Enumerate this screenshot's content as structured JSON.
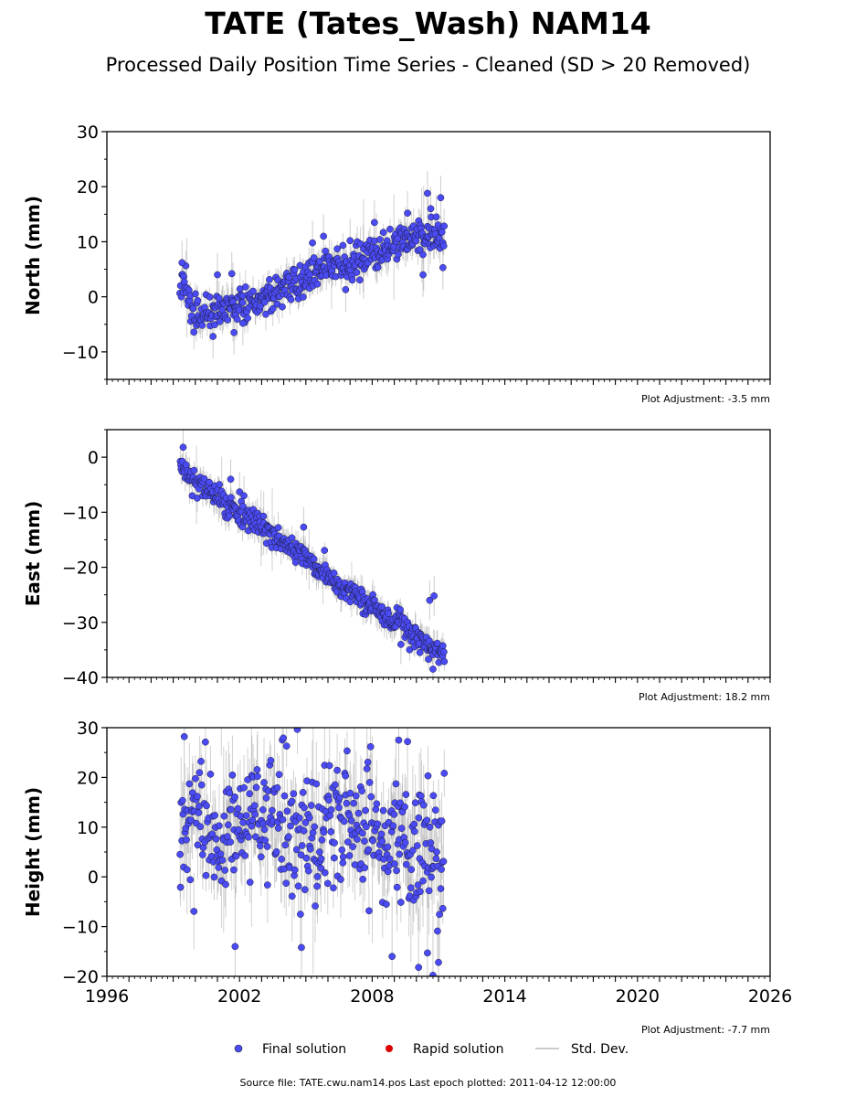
{
  "title": "TATE (Tates_Wash) NAM14",
  "subtitle": "Processed Daily Position Time Series - Cleaned (SD > 20 Removed)",
  "footer": "Source file: TATE.cwu.nam14.pos  Last epoch plotted: 2011-04-12 12:00:00",
  "legend": {
    "placement": "bottom-center",
    "items": [
      {
        "label": "Final solution",
        "color": "#4b4bf5",
        "kind": "marker"
      },
      {
        "label": "Rapid solution",
        "color": "#dd0000",
        "kind": "marker"
      },
      {
        "label": "Std. Dev.",
        "color": "#cccccc",
        "kind": "line"
      }
    ]
  },
  "colors": {
    "final": "#4b4bf5",
    "rapid": "#dd0000",
    "std_dev": "#999999",
    "axis": "#000000"
  },
  "chart_data": [
    {
      "type": "scatter",
      "ylabel": "North (mm)",
      "xlim": [
        1996,
        2026
      ],
      "ylim": [
        -15,
        30
      ],
      "yticks": [
        -10,
        0,
        10,
        20,
        30
      ],
      "ytick_labels": [
        "−10",
        "0",
        "10",
        "20",
        "30"
      ],
      "adjustment_label": "Plot Adjustment: -3.5 mm",
      "data_span": [
        1999.3,
        2011.28
      ],
      "trend_knots": {
        "x": [
          1999.3,
          1999.55,
          1999.75,
          2000.0,
          2001.0,
          2002.0,
          2003.0,
          2004.0,
          2005.0,
          2006.0,
          2007.0,
          2008.0,
          2009.0,
          2010.0,
          2011.28
        ],
        "y": [
          1.0,
          2.5,
          -2.0,
          -3.0,
          -2.5,
          -1.5,
          -0.5,
          1.5,
          3.5,
          5.0,
          6.0,
          7.5,
          9.5,
          11.0,
          10.5
        ]
      },
      "series": [
        {
          "name": "Final solution",
          "noise_sd": 1.6,
          "sd_typical": 2.0
        }
      ],
      "outliers": {
        "x": [
          1999.4,
          2000.8,
          2001.0,
          2001.65,
          2001.75,
          2002.15,
          2005.3,
          2005.8,
          2006.8,
          2007.0,
          2008.1,
          2009.6,
          2010.3,
          2010.5,
          2010.65,
          2010.9,
          2011.1,
          2011.2
        ],
        "y": [
          6.2,
          -7.2,
          4.0,
          4.2,
          -6.5,
          -4.8,
          9.8,
          11.0,
          1.3,
          10.2,
          13.5,
          15.2,
          4.0,
          18.8,
          16.0,
          14.5,
          18.0,
          5.3
        ]
      }
    },
    {
      "type": "scatter",
      "ylabel": "East (mm)",
      "xlim": [
        1996,
        2026
      ],
      "ylim": [
        -40,
        5
      ],
      "yticks": [
        -40,
        -30,
        -20,
        -10,
        0
      ],
      "ytick_labels": [
        "−40",
        "−30",
        "−20",
        "−10",
        "0"
      ],
      "adjustment_label": "Plot Adjustment: 18.2 mm",
      "data_span": [
        1999.3,
        2011.28
      ],
      "trend_knots": {
        "x": [
          1999.3,
          2000.0,
          2001.0,
          2002.0,
          2003.0,
          2004.0,
          2005.0,
          2006.0,
          2007.0,
          2008.0,
          2009.0,
          2010.0,
          2011.28
        ],
        "y": [
          -1.0,
          -4.5,
          -7.5,
          -10.0,
          -12.5,
          -15.5,
          -18.5,
          -21.5,
          -24.5,
          -27.0,
          -30.0,
          -32.5,
          -36.0
        ]
      },
      "series": [
        {
          "name": "Final solution",
          "noise_sd": 1.1,
          "sd_typical": 1.8
        }
      ],
      "outliers": {
        "x": [
          1999.45,
          2001.6,
          2002.0,
          2002.2,
          2004.9,
          2009.3,
          2010.6,
          2010.8,
          2010.75
        ],
        "y": [
          1.8,
          -4.0,
          -6.3,
          -7.0,
          -12.7,
          -34.0,
          -26.0,
          -25.2,
          -38.5
        ]
      }
    },
    {
      "type": "scatter",
      "ylabel": "Height (mm)",
      "xlim": [
        1996,
        2026
      ],
      "ylim": [
        -20,
        30
      ],
      "yticks": [
        -20,
        -10,
        0,
        10,
        20,
        30
      ],
      "ytick_labels": [
        "−20",
        "−10",
        "0",
        "10",
        "20",
        "30"
      ],
      "xticks": [
        1996,
        2002,
        2008,
        2014,
        2020,
        2026
      ],
      "xtick_labels": [
        "1996",
        "2002",
        "2008",
        "2014",
        "2020",
        "2026"
      ],
      "adjustment_label": "Plot Adjustment: -7.7 mm",
      "data_span": [
        1999.3,
        2011.28
      ],
      "trend_knots": {
        "x": [
          1999.3,
          2000.0,
          2001.0,
          2002.0,
          2003.0,
          2004.0,
          2005.0,
          2006.0,
          2007.0,
          2008.0,
          2009.0,
          2010.0,
          2011.28
        ],
        "y": [
          5.0,
          12.0,
          9.0,
          11.0,
          12.0,
          10.0,
          8.0,
          10.0,
          11.0,
          9.0,
          7.0,
          6.0,
          4.0
        ]
      },
      "series": [
        {
          "name": "Final solution",
          "noise_sd": 6.5,
          "sd_typical": 6.0
        }
      ],
      "outliers": {
        "x": [
          1999.5,
          2001.8,
          2004.8,
          2008.9,
          2009.2,
          2009.6,
          2010.1,
          2010.5,
          2010.75,
          2011.0
        ],
        "y": [
          28.2,
          -14.0,
          -14.2,
          -16.0,
          27.5,
          27.2,
          -18.2,
          -15.3,
          -19.8,
          -17.2
        ]
      }
    }
  ]
}
